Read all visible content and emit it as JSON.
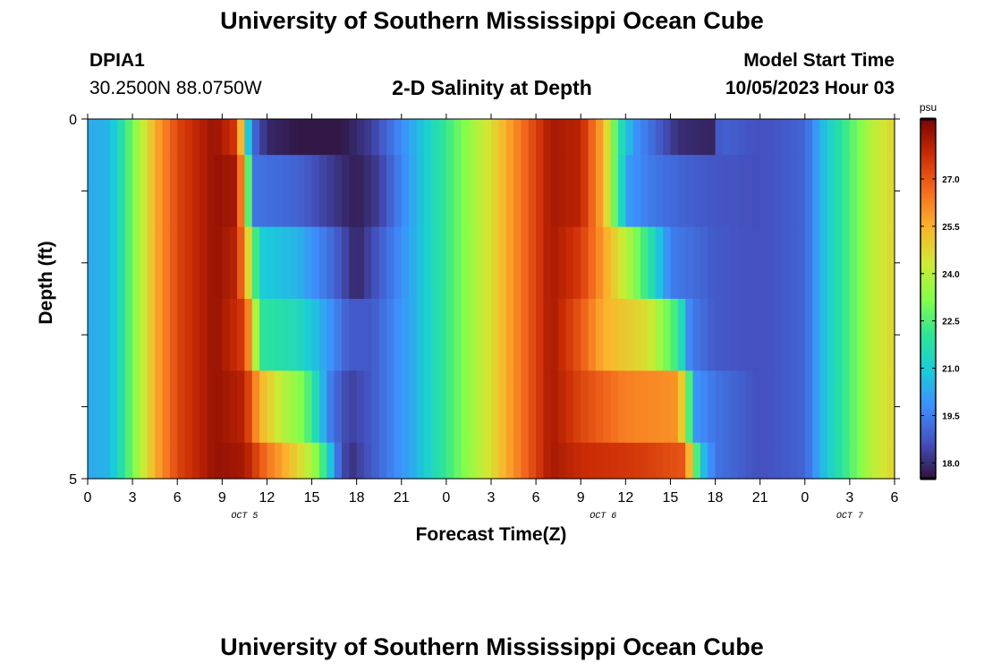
{
  "page": {
    "title": "University of Southern Mississippi Ocean Cube",
    "footer_title": "University of Southern Mississippi Ocean Cube"
  },
  "header": {
    "station": "DPIA1",
    "coords": "30.2500N  88.0750W",
    "subtitle": "2-D Salinity at Depth",
    "model_start_label": "Model Start Time",
    "model_start_value": "10/05/2023 Hour 03"
  },
  "chart_data": {
    "type": "heatmap",
    "title": "2-D Salinity at Depth",
    "xlabel": "Forecast Time(Z)",
    "ylabel": "Depth (ft)",
    "x_ticks": [
      "0",
      "3",
      "6",
      "9",
      "12",
      "15",
      "18",
      "21",
      "0",
      "3",
      "6",
      "9",
      "12",
      "15",
      "18",
      "21",
      "0",
      "3",
      "6"
    ],
    "x_minor_labels": [
      {
        "label": "OCT 5",
        "tick_index": 3.5
      },
      {
        "label": "OCT 6",
        "tick_index": 11.5
      },
      {
        "label": "OCT 7",
        "tick_index": 17
      }
    ],
    "y_ticks": [
      "0",
      "5"
    ],
    "y_range": [
      0,
      5
    ],
    "x_range_hours": [
      0,
      54
    ],
    "colorbar": {
      "unit": "psu",
      "range": [
        17.5,
        28.9
      ],
      "ticks": [
        "18.0",
        "19.5",
        "21.0",
        "22.5",
        "24.0",
        "25.5",
        "27.0"
      ],
      "tick_values": [
        18.0,
        19.5,
        21.0,
        22.5,
        24.0,
        25.5,
        27.0
      ],
      "colormap": "turbo"
    },
    "layers": [
      {
        "depth": [
          0.0,
          0.5
        ],
        "breakpoints": [
          [
            0,
            20.3
          ],
          [
            1.5,
            20.5
          ],
          [
            3,
            23.0
          ],
          [
            4.5,
            25.5
          ],
          [
            6,
            27.3
          ],
          [
            8.5,
            28.5
          ],
          [
            10,
            27.5
          ],
          [
            10.3,
            25.0
          ],
          [
            10.7,
            21.0
          ],
          [
            11.2,
            19.0
          ],
          [
            12,
            17.9
          ],
          [
            14,
            17.6
          ],
          [
            17,
            17.6
          ],
          [
            19,
            18.3
          ],
          [
            22,
            20.5
          ],
          [
            24.5,
            22.6
          ],
          [
            27,
            24.6
          ],
          [
            29,
            26.5
          ],
          [
            31,
            28.3
          ],
          [
            33,
            28.0
          ],
          [
            34.5,
            25.5
          ],
          [
            35.5,
            22.0
          ],
          [
            36.5,
            20.0
          ],
          [
            38,
            19.0
          ],
          [
            39.5,
            18.0
          ],
          [
            42,
            17.8
          ],
          [
            42.3,
            19.0
          ],
          [
            45,
            18.6
          ],
          [
            48,
            19.0
          ],
          [
            49.5,
            21.0
          ],
          [
            51,
            22.5
          ],
          [
            52.5,
            24.0
          ],
          [
            54,
            24.8
          ]
        ]
      },
      {
        "depth": [
          0.5,
          1.5
        ],
        "breakpoints": [
          [
            0,
            20.3
          ],
          [
            1.5,
            20.5
          ],
          [
            3,
            23.0
          ],
          [
            4.5,
            25.5
          ],
          [
            6,
            27.3
          ],
          [
            8.5,
            28.5
          ],
          [
            10,
            28.3
          ],
          [
            10.6,
            24.0
          ],
          [
            11.1,
            19.3
          ],
          [
            14,
            19.0
          ],
          [
            17,
            18.0
          ],
          [
            18,
            17.7
          ],
          [
            19.5,
            18.3
          ],
          [
            22,
            20.5
          ],
          [
            24.5,
            22.6
          ],
          [
            27,
            24.6
          ],
          [
            29,
            26.5
          ],
          [
            31,
            28.3
          ],
          [
            33,
            28.0
          ],
          [
            34.5,
            25.5
          ],
          [
            35.5,
            22.0
          ],
          [
            36.2,
            20.0
          ],
          [
            38,
            19.3
          ],
          [
            41,
            18.8
          ],
          [
            45,
            18.6
          ],
          [
            48,
            19.0
          ],
          [
            49.5,
            21.0
          ],
          [
            51,
            22.5
          ],
          [
            52.5,
            24.0
          ],
          [
            54,
            24.8
          ]
        ]
      },
      {
        "depth": [
          1.5,
          2.5
        ],
        "breakpoints": [
          [
            0,
            20.3
          ],
          [
            1.5,
            20.5
          ],
          [
            3,
            23.0
          ],
          [
            4.5,
            25.5
          ],
          [
            6,
            27.3
          ],
          [
            8.5,
            28.5
          ],
          [
            10,
            28.0
          ],
          [
            10.8,
            24.5
          ],
          [
            11.5,
            21.0
          ],
          [
            14,
            20.5
          ],
          [
            16.5,
            19.0
          ],
          [
            18,
            17.8
          ],
          [
            19,
            18.5
          ],
          [
            22,
            20.5
          ],
          [
            24.5,
            22.6
          ],
          [
            27,
            24.6
          ],
          [
            29,
            26.5
          ],
          [
            31,
            28.3
          ],
          [
            33,
            27.5
          ],
          [
            34.5,
            25.8
          ],
          [
            36,
            24.0
          ],
          [
            37.5,
            22.0
          ],
          [
            39,
            19.5
          ],
          [
            42,
            18.8
          ],
          [
            45,
            18.6
          ],
          [
            48,
            19.0
          ],
          [
            49.5,
            21.0
          ],
          [
            51,
            22.5
          ],
          [
            52.5,
            24.0
          ],
          [
            54,
            24.8
          ]
        ]
      },
      {
        "depth": [
          2.5,
          3.5
        ],
        "breakpoints": [
          [
            0,
            20.3
          ],
          [
            1.5,
            20.5
          ],
          [
            3,
            23.0
          ],
          [
            4.5,
            25.5
          ],
          [
            6,
            27.3
          ],
          [
            8.5,
            28.5
          ],
          [
            10.5,
            27.5
          ],
          [
            11,
            25.0
          ],
          [
            11.6,
            22.0
          ],
          [
            14,
            21.5
          ],
          [
            15.5,
            20.5
          ],
          [
            17.5,
            18.8
          ],
          [
            19,
            18.8
          ],
          [
            22,
            20.5
          ],
          [
            24.5,
            22.6
          ],
          [
            27,
            24.6
          ],
          [
            29,
            26.5
          ],
          [
            31,
            28.3
          ],
          [
            33,
            27.0
          ],
          [
            34.5,
            25.5
          ],
          [
            37.5,
            24.5
          ],
          [
            39.6,
            22.0
          ],
          [
            40.3,
            19.5
          ],
          [
            42,
            18.8
          ],
          [
            45,
            18.6
          ],
          [
            48,
            19.0
          ],
          [
            49.5,
            21.0
          ],
          [
            51,
            22.5
          ],
          [
            52.5,
            24.0
          ],
          [
            54,
            24.8
          ]
        ]
      },
      {
        "depth": [
          3.5,
          4.5
        ],
        "breakpoints": [
          [
            0,
            20.3
          ],
          [
            1.5,
            20.5
          ],
          [
            3,
            23.0
          ],
          [
            4.5,
            25.5
          ],
          [
            6,
            27.3
          ],
          [
            8.5,
            28.5
          ],
          [
            10.5,
            28.0
          ],
          [
            11.5,
            25.5
          ],
          [
            13,
            24.0
          ],
          [
            14.5,
            23.0
          ],
          [
            15.5,
            21.0
          ],
          [
            16.2,
            19.5
          ],
          [
            17.5,
            18.3
          ],
          [
            19,
            18.8
          ],
          [
            22,
            20.5
          ],
          [
            24.5,
            22.6
          ],
          [
            27,
            24.6
          ],
          [
            29,
            26.5
          ],
          [
            31,
            28.3
          ],
          [
            33,
            27.3
          ],
          [
            36,
            26.3
          ],
          [
            39.5,
            26.0
          ],
          [
            40.1,
            23.5
          ],
          [
            40.6,
            20.0
          ],
          [
            42,
            19.3
          ],
          [
            45,
            18.6
          ],
          [
            48,
            19.0
          ],
          [
            49.5,
            21.0
          ],
          [
            51,
            22.5
          ],
          [
            52.5,
            24.0
          ],
          [
            54,
            24.8
          ]
        ]
      },
      {
        "depth": [
          4.5,
          5.0
        ],
        "breakpoints": [
          [
            0,
            20.3
          ],
          [
            1.5,
            20.5
          ],
          [
            3,
            23.0
          ],
          [
            4.5,
            25.5
          ],
          [
            6,
            27.3
          ],
          [
            8.5,
            28.5
          ],
          [
            10.5,
            28.3
          ],
          [
            12,
            26.5
          ],
          [
            13.5,
            25.3
          ],
          [
            15,
            23.8
          ],
          [
            15.9,
            22.0
          ],
          [
            16.6,
            19.5
          ],
          [
            17.5,
            18.0
          ],
          [
            19,
            18.8
          ],
          [
            22,
            20.5
          ],
          [
            24.5,
            22.6
          ],
          [
            27,
            24.6
          ],
          [
            29,
            26.5
          ],
          [
            31,
            28.3
          ],
          [
            33,
            27.8
          ],
          [
            37,
            27.5
          ],
          [
            40,
            27.0
          ],
          [
            40.4,
            24.5
          ],
          [
            41,
            21.0
          ],
          [
            42,
            19.3
          ],
          [
            45,
            18.6
          ],
          [
            48,
            19.0
          ],
          [
            49.5,
            21.0
          ],
          [
            51,
            22.5
          ],
          [
            52.5,
            24.0
          ],
          [
            54,
            24.8
          ]
        ]
      }
    ]
  }
}
